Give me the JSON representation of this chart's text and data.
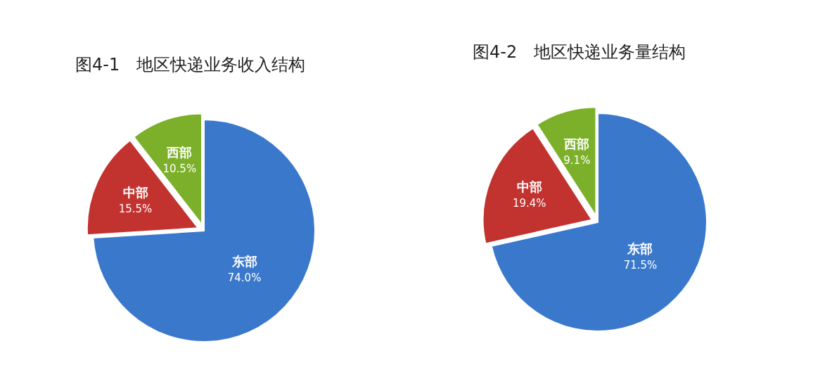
{
  "chart_data": [
    {
      "type": "pie",
      "title": "图4-1　地区快递业务收入结构",
      "categories": [
        "东部",
        "中部",
        "西部"
      ],
      "values": [
        74.0,
        15.5,
        10.5
      ],
      "colors": [
        "#3a78cc",
        "#c2322f",
        "#7cb02a"
      ],
      "value_labels": [
        "74.0%",
        "15.5%",
        "10.5%"
      ]
    },
    {
      "type": "pie",
      "title": "图4-2　地区快递业务量结构",
      "categories": [
        "东部",
        "中部",
        "西部"
      ],
      "values": [
        71.5,
        19.4,
        9.1
      ],
      "colors": [
        "#3a78cc",
        "#c2322f",
        "#7cb02a"
      ],
      "value_labels": [
        "71.5%",
        "19.4%",
        "9.1%"
      ]
    }
  ]
}
